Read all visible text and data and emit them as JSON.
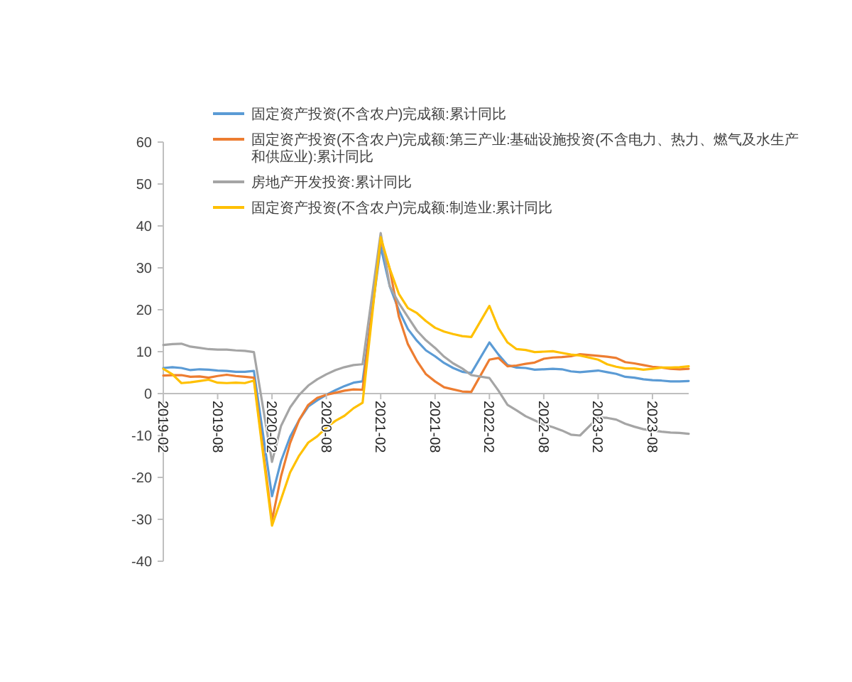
{
  "chart_data": {
    "type": "line",
    "legend": "top",
    "xlim": [
      "2019-02",
      "2023-12"
    ],
    "ylim": [
      -40,
      60
    ],
    "xticks": [
      "2019-02",
      "2019-08",
      "2020-02",
      "2020-08",
      "2021-02",
      "2021-08",
      "2022-02",
      "2022-08",
      "2023-02",
      "2023-08"
    ],
    "yticks": [
      -40,
      -30,
      -20,
      -10,
      0,
      10,
      20,
      30,
      40,
      50,
      60
    ],
    "x": [
      "2019-02",
      "2019-03",
      "2019-04",
      "2019-05",
      "2019-06",
      "2019-07",
      "2019-08",
      "2019-09",
      "2019-10",
      "2019-11",
      "2019-12",
      "2020-02",
      "2020-03",
      "2020-04",
      "2020-05",
      "2020-06",
      "2020-07",
      "2020-08",
      "2020-09",
      "2020-10",
      "2020-11",
      "2020-12",
      "2021-02",
      "2021-03",
      "2021-04",
      "2021-05",
      "2021-06",
      "2021-07",
      "2021-08",
      "2021-09",
      "2021-10",
      "2021-11",
      "2021-12",
      "2022-02",
      "2022-03",
      "2022-04",
      "2022-05",
      "2022-06",
      "2022-07",
      "2022-08",
      "2022-09",
      "2022-10",
      "2022-11",
      "2022-12",
      "2023-02",
      "2023-03",
      "2023-04",
      "2023-05",
      "2023-06",
      "2023-07",
      "2023-08",
      "2023-09",
      "2023-10",
      "2023-11",
      "2023-12"
    ],
    "series": [
      {
        "name": "固定资产投资(不含农户)完成额:累计同比",
        "color": "#5b9bd5",
        "values": [
          6.1,
          6.3,
          6.1,
          5.6,
          5.8,
          5.7,
          5.5,
          5.4,
          5.2,
          5.2,
          5.4,
          -24.5,
          -16.1,
          -10.3,
          -6.3,
          -3.1,
          -1.6,
          -0.3,
          0.8,
          1.8,
          2.6,
          2.9,
          35.0,
          25.6,
          19.9,
          15.4,
          12.6,
          10.3,
          8.9,
          7.3,
          6.1,
          5.2,
          4.9,
          12.2,
          9.3,
          6.8,
          6.2,
          6.1,
          5.7,
          5.8,
          5.9,
          5.8,
          5.3,
          5.1,
          5.5,
          5.1,
          4.7,
          4.0,
          3.8,
          3.4,
          3.2,
          3.1,
          2.9,
          2.9,
          3.0
        ]
      },
      {
        "name": "固定资产投资(不含农户)完成额:第三产业:基础设施投资(不含电力、热力、燃气及水生产和供应业):累计同比",
        "color": "#ed7d31",
        "values": [
          4.3,
          4.4,
          4.4,
          4.0,
          4.1,
          3.8,
          4.2,
          4.5,
          4.2,
          4.0,
          3.8,
          -30.3,
          -19.7,
          -11.8,
          -6.3,
          -2.7,
          -1.0,
          -0.3,
          0.2,
          0.7,
          1.0,
          0.9,
          36.6,
          29.7,
          18.4,
          11.8,
          7.8,
          4.6,
          2.9,
          1.5,
          1.0,
          0.5,
          0.4,
          8.1,
          8.5,
          6.5,
          6.7,
          7.1,
          7.4,
          8.3,
          8.6,
          8.7,
          8.9,
          9.4,
          9.0,
          8.8,
          8.5,
          7.5,
          7.2,
          6.8,
          6.4,
          6.2,
          5.9,
          5.8,
          5.9
        ]
      },
      {
        "name": "房地产开发投资:累计同比",
        "color": "#a5a5a5",
        "values": [
          11.6,
          11.8,
          11.9,
          11.2,
          10.9,
          10.6,
          10.5,
          10.5,
          10.3,
          10.2,
          9.9,
          -16.3,
          -7.7,
          -3.3,
          -0.3,
          1.9,
          3.4,
          4.6,
          5.6,
          6.3,
          6.8,
          7.0,
          38.3,
          25.6,
          21.6,
          18.3,
          15.0,
          12.7,
          10.9,
          8.8,
          7.2,
          6.0,
          4.4,
          3.7,
          0.7,
          -2.7,
          -4.0,
          -5.4,
          -6.4,
          -7.4,
          -8.0,
          -8.8,
          -9.8,
          -10.0,
          -5.7,
          -5.8,
          -6.2,
          -7.2,
          -7.9,
          -8.5,
          -8.8,
          -9.1,
          -9.3,
          -9.4,
          -9.6
        ]
      },
      {
        "name": "固定资产投资(不含农户)完成额:制造业:累计同比",
        "color": "#ffc000",
        "values": [
          5.9,
          4.6,
          2.5,
          2.7,
          3.0,
          3.3,
          2.6,
          2.5,
          2.6,
          2.5,
          3.1,
          -31.5,
          -25.2,
          -18.8,
          -14.8,
          -11.7,
          -10.2,
          -8.1,
          -6.5,
          -5.3,
          -3.5,
          -2.2,
          37.3,
          29.8,
          23.8,
          20.4,
          19.2,
          17.3,
          15.7,
          14.8,
          14.2,
          13.7,
          13.5,
          20.9,
          15.6,
          12.2,
          10.6,
          10.4,
          9.9,
          10.0,
          10.1,
          9.7,
          9.3,
          9.1,
          8.1,
          7.0,
          6.4,
          6.0,
          6.0,
          5.7,
          5.9,
          6.2,
          6.2,
          6.3,
          6.5
        ]
      }
    ]
  }
}
